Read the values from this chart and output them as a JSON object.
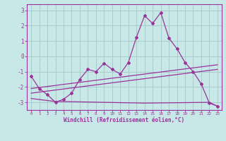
{
  "xlabel": "Windchill (Refroidissement éolien,°C)",
  "background_color": "#c8e8e8",
  "grid_color": "#a8cccc",
  "line_color": "#993399",
  "series_main": {
    "x": [
      0,
      1,
      2,
      3,
      4,
      5,
      6,
      7,
      8,
      9,
      10,
      11,
      12,
      13,
      14,
      15,
      16,
      17,
      18,
      19,
      20,
      21,
      22,
      23
    ],
    "y": [
      -1.3,
      -2.1,
      -2.5,
      -3.0,
      -2.8,
      -2.4,
      -1.5,
      -0.85,
      -1.0,
      -0.45,
      -0.85,
      -1.15,
      -0.4,
      1.25,
      2.65,
      2.15,
      2.85,
      1.2,
      0.5,
      -0.4,
      -1.0,
      -1.8,
      -3.05,
      -3.25
    ]
  },
  "series_diag1": {
    "x": [
      0,
      23
    ],
    "y": [
      -2.1,
      -0.55
    ]
  },
  "series_diag2": {
    "x": [
      0,
      23
    ],
    "y": [
      -2.4,
      -0.85
    ]
  },
  "series_flat": {
    "x": [
      0,
      3,
      4,
      14,
      22,
      23
    ],
    "y": [
      -2.75,
      -2.95,
      -2.95,
      -3.05,
      -3.0,
      -3.25
    ]
  },
  "ylim": [
    -3.5,
    3.4
  ],
  "yticks": [
    -3,
    -2,
    -1,
    0,
    1,
    2,
    3
  ],
  "xlim": [
    -0.5,
    23.5
  ],
  "x_labels": [
    0,
    1,
    2,
    3,
    4,
    5,
    6,
    7,
    8,
    9,
    10,
    11,
    12,
    13,
    14,
    15,
    16,
    17,
    18,
    19,
    20,
    21,
    22,
    23
  ]
}
